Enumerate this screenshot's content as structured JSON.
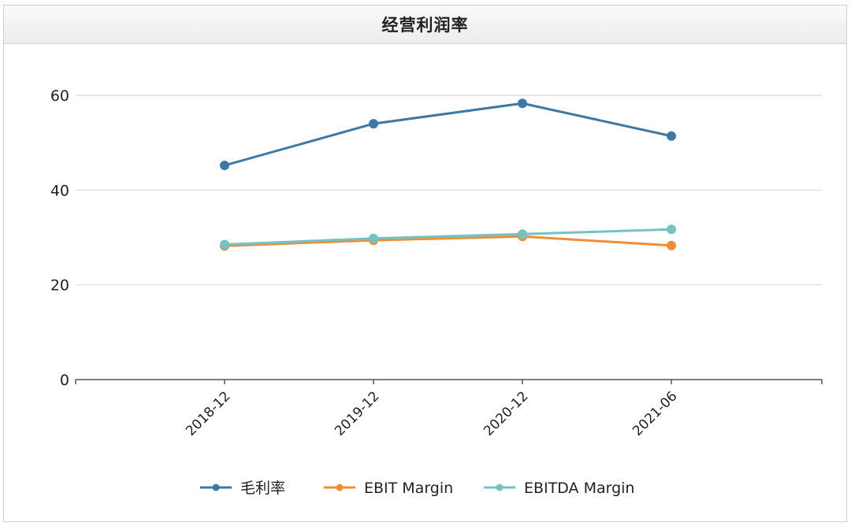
{
  "panel": {
    "title": "经营利润率"
  },
  "chart_data": {
    "type": "line",
    "title": "经营利润率",
    "categories": [
      "2018-12",
      "2019-12",
      "2020-12",
      "2021-06"
    ],
    "series": [
      {
        "name": "毛利率",
        "color": "#3e79a6",
        "values": [
          45.2,
          54.0,
          58.3,
          51.4
        ]
      },
      {
        "name": "EBIT Margin",
        "color": "#ee8f37",
        "values": [
          28.2,
          29.4,
          30.2,
          28.3
        ]
      },
      {
        "name": "EBITDA Margin",
        "color": "#76c1c1",
        "values": [
          28.5,
          29.8,
          30.7,
          31.7
        ]
      }
    ],
    "y_ticks": [
      "0",
      "20",
      "40",
      "60"
    ],
    "ylim": [
      0,
      60
    ],
    "grid": true,
    "legend": "bottom-center"
  }
}
